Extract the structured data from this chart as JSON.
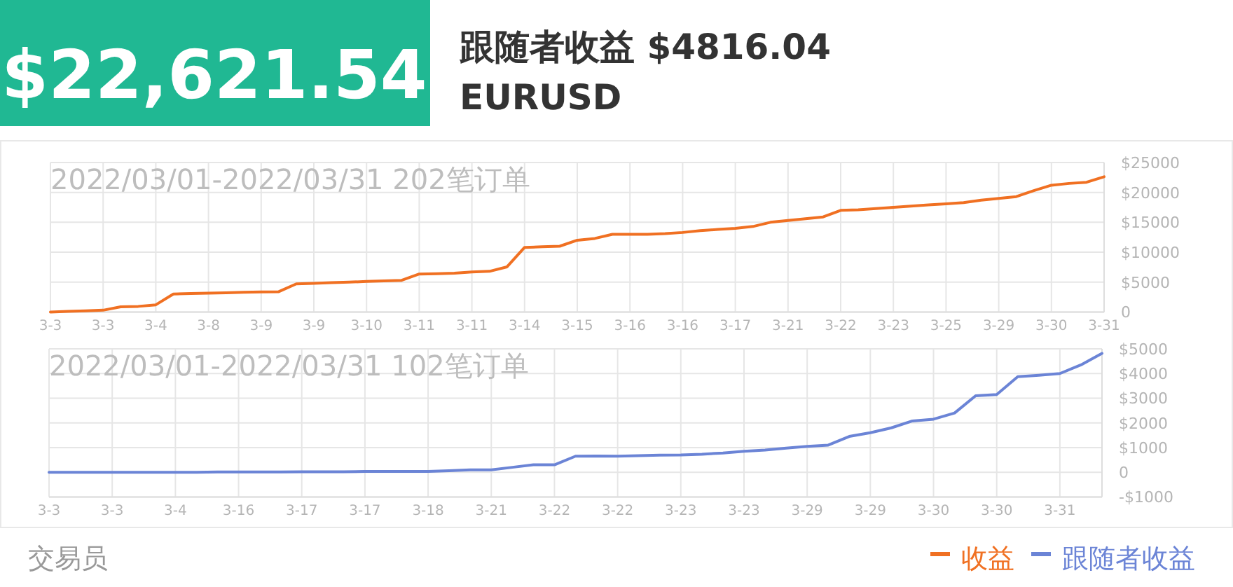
{
  "chart_data": [
    {
      "type": "line",
      "title": "2022/03/01-2022/03/31 202笔订单",
      "annotations": [
        "$22,621.54",
        "跟随者收益 $4816.04",
        "EURUSD"
      ],
      "categories": [
        "3-3",
        null,
        null,
        "3-3",
        null,
        null,
        "3-4",
        null,
        null,
        "3-8",
        null,
        null,
        "3-9",
        null,
        null,
        "3-9",
        null,
        null,
        "3-10",
        null,
        null,
        "3-11",
        null,
        null,
        "3-11",
        null,
        null,
        "3-14",
        null,
        null,
        "3-15",
        null,
        null,
        "3-16",
        null,
        null,
        "3-16",
        null,
        null,
        "3-17",
        null,
        null,
        "3-21",
        null,
        null,
        "3-22",
        null,
        null,
        "3-23",
        null,
        null,
        "3-25",
        null,
        null,
        "3-29",
        null,
        null,
        "3-30",
        null,
        null,
        "3-31"
      ],
      "series": [
        {
          "name": "收益",
          "color": "#f07022",
          "values": [
            0,
            100,
            200,
            300,
            860,
            940,
            1200,
            3000,
            3100,
            3150,
            3200,
            3300,
            3350,
            3400,
            4700,
            4800,
            4900,
            5000,
            5100,
            5200,
            5300,
            6350,
            6400,
            6500,
            6700,
            6800,
            7550,
            10800,
            10900,
            11000,
            12000,
            12300,
            13000,
            13000,
            13000,
            13100,
            13300,
            13600,
            13800,
            14000,
            14300,
            15000,
            15300,
            15600,
            15900,
            17000,
            17100,
            17300,
            17500,
            17700,
            17900,
            18100,
            18300,
            18700,
            19000,
            19300,
            20300,
            21200,
            21500,
            21700,
            22621.54
          ]
        }
      ],
      "ylim": [
        0,
        25000
      ],
      "yticks": [
        0,
        {
          "value": 5000,
          "label": "$5000"
        },
        {
          "value": 10000,
          "label": "$10000"
        },
        {
          "value": 15000,
          "label": "$15000"
        },
        {
          "value": 20000,
          "label": "$20000"
        },
        {
          "value": 25000,
          "label": "$25000"
        }
      ],
      "grid": true,
      "legend": "bottom right"
    },
    {
      "type": "line",
      "title": "2022/03/01-2022/03/31 102笔订单",
      "annotations": [
        "交易员"
      ],
      "categories": [
        "3-3",
        null,
        null,
        "3-3",
        null,
        null,
        "3-4",
        null,
        null,
        "3-16",
        null,
        null,
        "3-17",
        null,
        null,
        "3-17",
        null,
        null,
        "3-18",
        null,
        null,
        "3-21",
        null,
        null,
        "3-22",
        null,
        null,
        "3-22",
        null,
        null,
        "3-23",
        null,
        null,
        "3-23",
        null,
        null,
        "3-29",
        null,
        null,
        "3-29",
        null,
        null,
        "3-30",
        null,
        null,
        "3-30",
        null,
        null,
        "3-31",
        null,
        null
      ],
      "series": [
        {
          "name": "跟随者收益",
          "color": "#6b84d6",
          "values": [
            0,
            0,
            0,
            0,
            0,
            0,
            0,
            0,
            10,
            10,
            10,
            10,
            20,
            20,
            20,
            30,
            30,
            30,
            30,
            60,
            100,
            100,
            200,
            300,
            300,
            650,
            660,
            650,
            670,
            690,
            700,
            730,
            780,
            850,
            900,
            980,
            1050,
            1100,
            1450,
            1600,
            1800,
            2080,
            2150,
            2400,
            3100,
            3150,
            3870,
            3930,
            4000,
            4350,
            4816.04
          ]
        }
      ],
      "ylim": [
        -1000,
        5000
      ],
      "yticks": [
        {
          "value": -1000,
          "label": "-$1000"
        },
        0,
        {
          "value": 1000,
          "label": "$1000"
        },
        {
          "value": 2000,
          "label": "$2000"
        },
        {
          "value": 3000,
          "label": "$3000"
        },
        {
          "value": 4000,
          "label": "$4000"
        },
        {
          "value": 5000,
          "label": "$5000"
        }
      ],
      "grid": true,
      "legend": "bottom right"
    }
  ]
}
